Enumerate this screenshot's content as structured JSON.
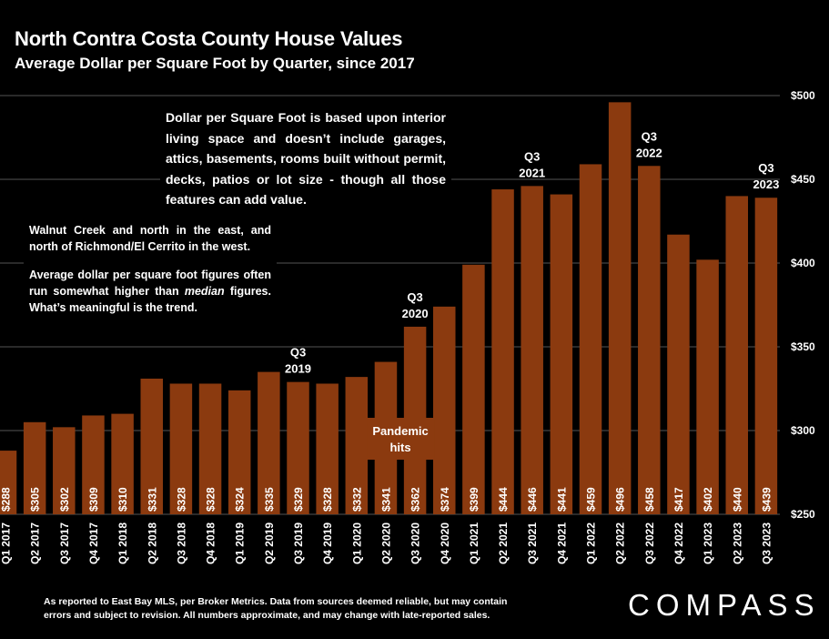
{
  "header": {
    "title": "North Contra Costa County House Values",
    "subtitle": "Average Dollar per Square Foot by Quarter, since 2017"
  },
  "notes": {
    "definition": "Dollar per Square Foot is based upon interior living space and doesn’t include garages, attics, basements, rooms built without permit, decks, patios or lot size - though all those features can add value.",
    "geography": "Walnut Creek and north in the east, and north of Richmond/El Cerrito in the west.",
    "average_pre": "Average dollar per square foot figures often run somewhat higher than ",
    "average_em": "median",
    "average_post": " figures. What’s meaningful is the trend."
  },
  "footer": {
    "line1": "As reported to East Bay MLS, per Broker Metrics. Data from sources deemed reliable, but may contain",
    "line2": "errors and subject to revision. All numbers approximate, and may change with late-reported sales."
  },
  "logo": "COMPASS",
  "colors": {
    "bar": "#8B3A0F",
    "grid": "#555555",
    "background": "#000000",
    "text": "#ffffff"
  },
  "chart_data": {
    "type": "bar",
    "categories": [
      "Q1 2017",
      "Q2 2017",
      "Q3 2017",
      "Q4 2017",
      "Q1 2018",
      "Q2 2018",
      "Q3 2018",
      "Q4 2018",
      "Q1 2019",
      "Q2 2019",
      "Q3 2019",
      "Q4 2019",
      "Q1 2020",
      "Q2 2020",
      "Q3 2020",
      "Q4 2020",
      "Q1 2021",
      "Q2 2021",
      "Q3 2021",
      "Q4 2021",
      "Q1 2022",
      "Q2 2022",
      "Q3 2022",
      "Q4 2022",
      "Q1 2023",
      "Q2 2023",
      "Q3 2023"
    ],
    "values": [
      288,
      305,
      302,
      309,
      310,
      331,
      328,
      328,
      324,
      335,
      329,
      328,
      332,
      341,
      362,
      374,
      399,
      444,
      446,
      441,
      459,
      496,
      458,
      417,
      402,
      440,
      439
    ],
    "value_labels": [
      "$288",
      "$305",
      "$302",
      "$309",
      "$310",
      "$331",
      "$328",
      "$328",
      "$324",
      "$335",
      "$329",
      "$328",
      "$332",
      "$341",
      "$362",
      "$374",
      "$399",
      "$444",
      "$446",
      "$441",
      "$459",
      "$496",
      "$458",
      "$417",
      "$402",
      "$440",
      "$439"
    ],
    "ylim": [
      250,
      500
    ],
    "yticks": [
      250,
      300,
      350,
      400,
      450,
      500
    ],
    "ytick_labels": [
      "$250",
      "$300",
      "$350",
      "$400",
      "$450",
      "$500"
    ],
    "grid": true,
    "annotations": [
      {
        "category": "Q3 2019",
        "lines": [
          "Q3",
          "2019"
        ]
      },
      {
        "category": "Q3 2020",
        "lines": [
          "Q3",
          "2020"
        ]
      },
      {
        "category": "Q3 2021",
        "lines": [
          "Q3",
          "2021"
        ]
      },
      {
        "category": "Q3 2022",
        "lines": [
          "Q3",
          "2022"
        ]
      },
      {
        "category": "Q3 2023",
        "lines": [
          "Q3",
          "2023"
        ]
      },
      {
        "category": "Q2 2020",
        "lines": [
          "Pandemic",
          "hits"
        ],
        "boxed": true
      }
    ]
  }
}
